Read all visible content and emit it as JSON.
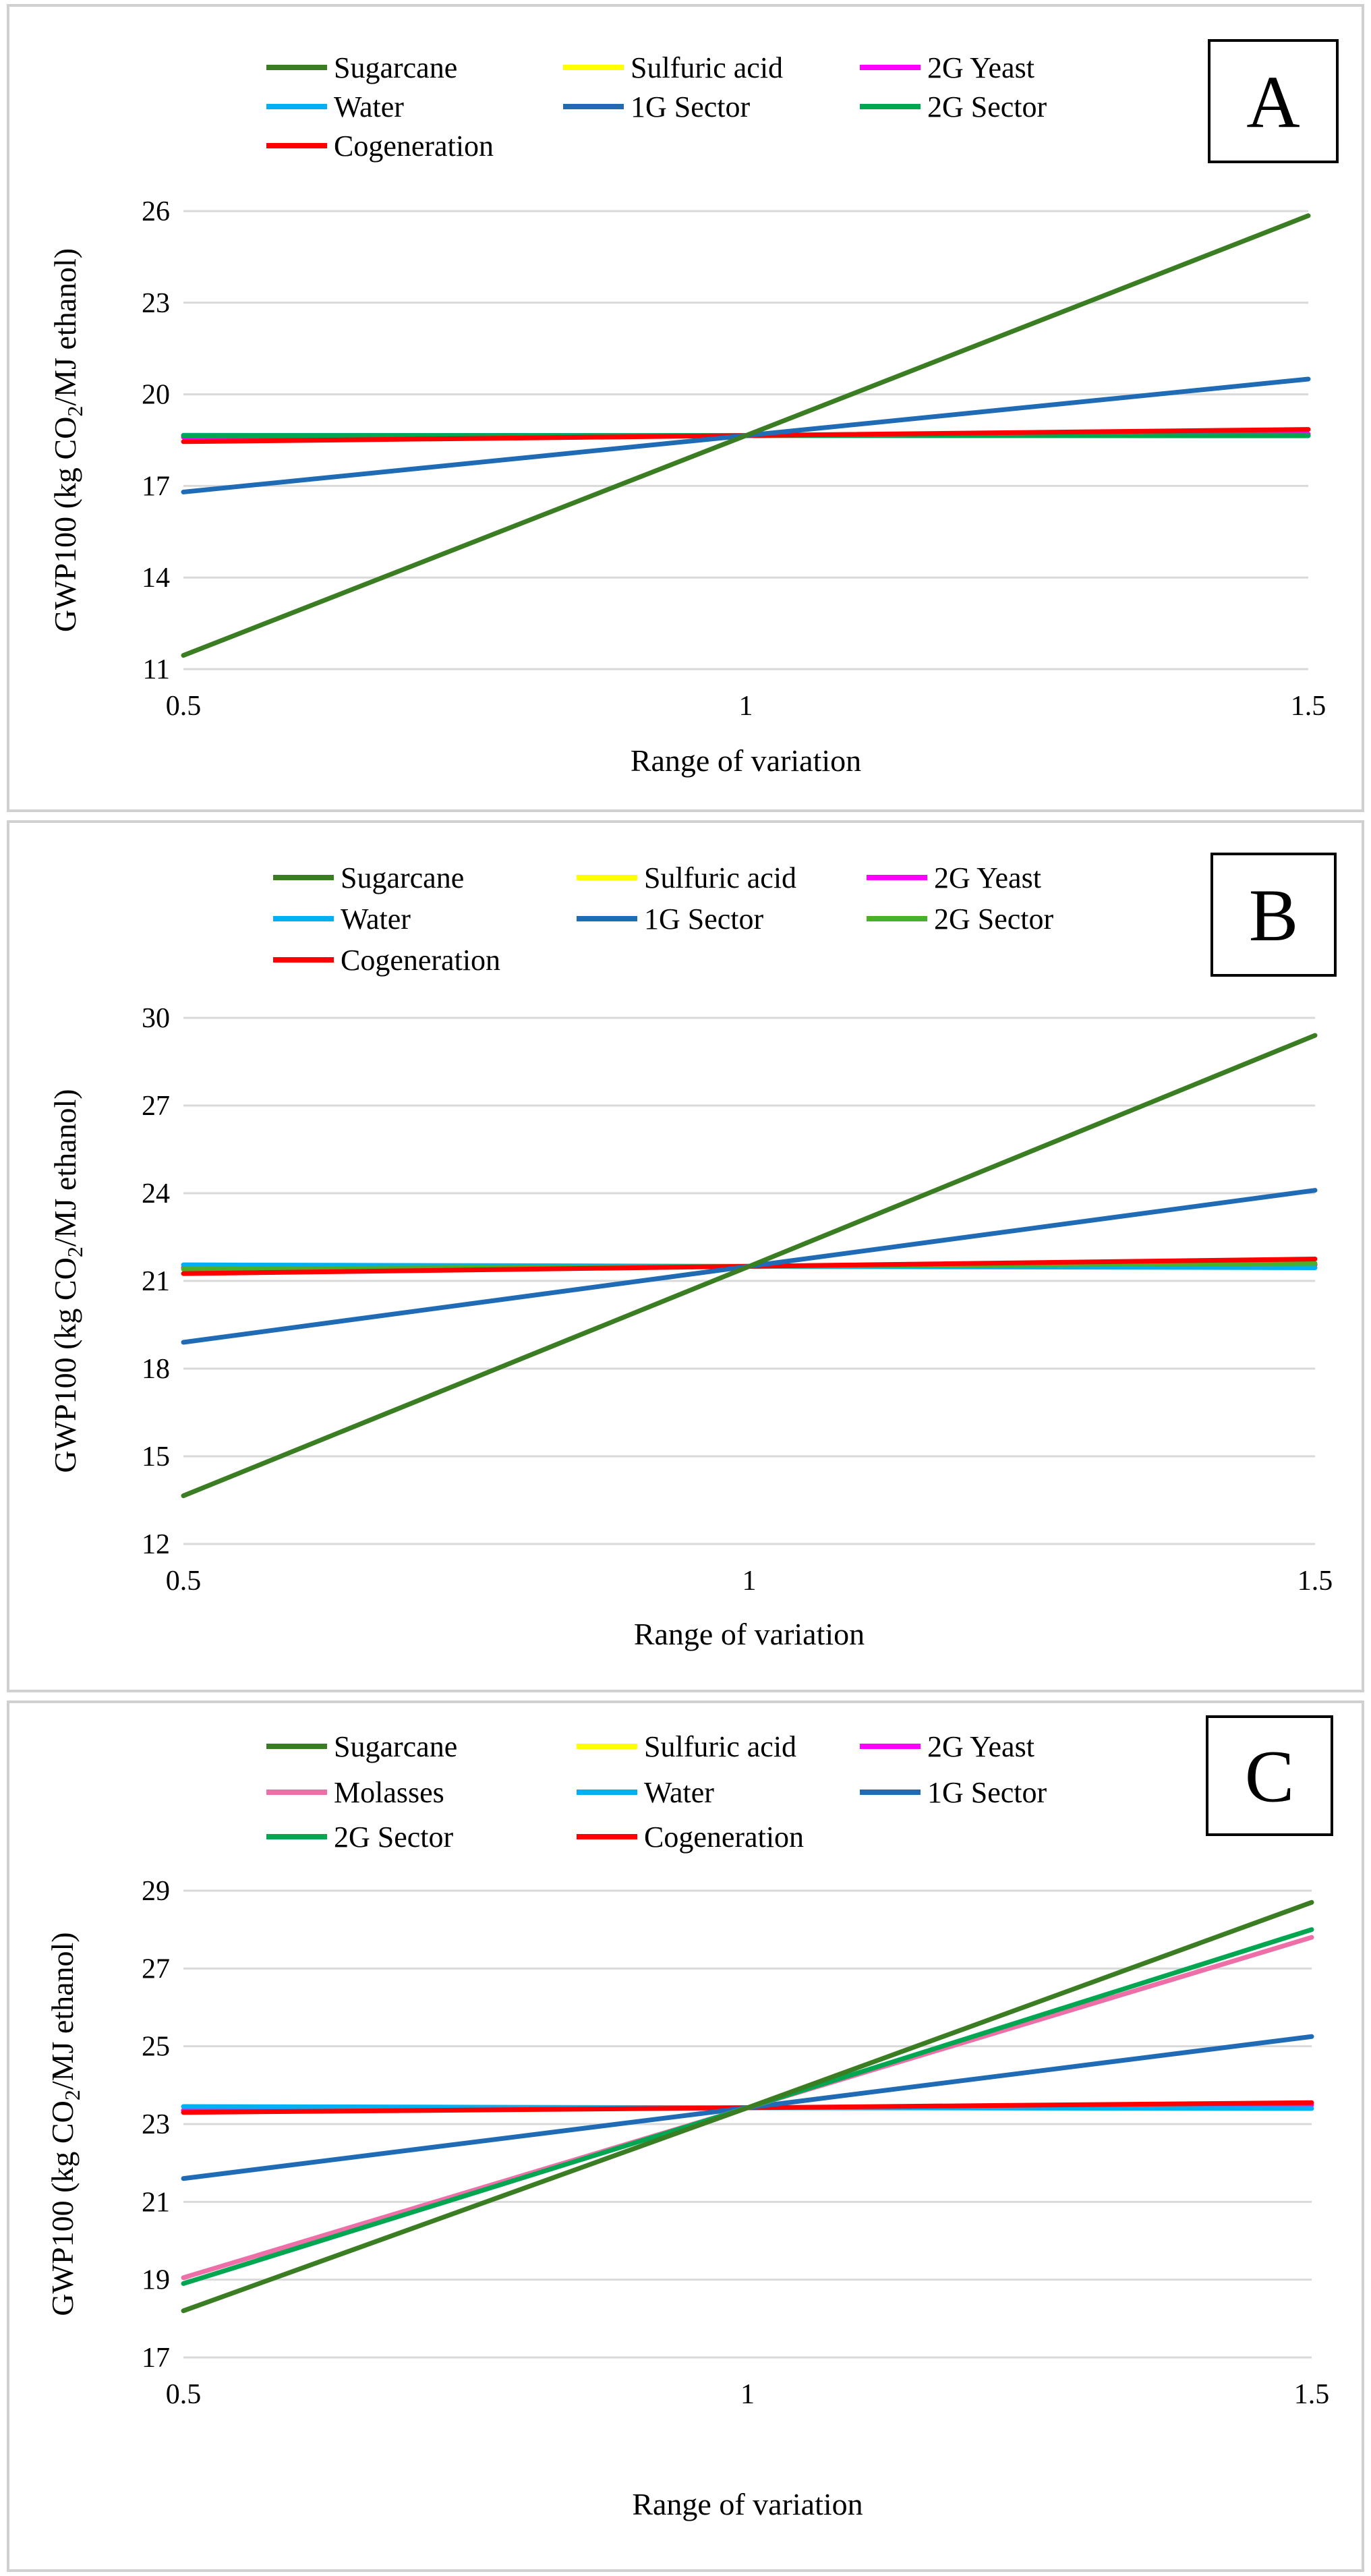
{
  "colors": {
    "Sugarcane": "#3a7d22",
    "Sulfuric acid": "#ffff00",
    "2G Yeast": "#ff00ff",
    "Molasses": "#ee6fa8",
    "Water": "#00b0f0",
    "1G Sector": "#1f6bb5",
    "2G Sector": "#00a650",
    "2G Sector B": "#4caf2a",
    "Cogeneration": "#ff0000"
  },
  "chart_data": [
    {
      "id": "A",
      "type": "line",
      "label": "A",
      "xlabel": "Range of variation",
      "ylabel_main": "GWP100 (kg CO",
      "ylabel_sub": "2",
      "ylabel_rest": "/MJ ethanol)",
      "xlim": [
        0.5,
        1.5
      ],
      "ylim": [
        11,
        26
      ],
      "xticks": [
        "0.5",
        "1",
        "1.5"
      ],
      "yticks": [
        "11",
        "14",
        "17",
        "20",
        "23",
        "26"
      ],
      "legend": [
        "Sugarcane",
        "Sulfuric acid",
        "2G Yeast",
        "Water",
        "1G Sector",
        "2G Sector",
        "Cogeneration"
      ],
      "series": [
        {
          "name": "Sulfuric acid",
          "x": [
            0.5,
            1,
            1.5
          ],
          "values": [
            18.62,
            18.65,
            18.68
          ]
        },
        {
          "name": "2G Yeast",
          "x": [
            0.5,
            1,
            1.5
          ],
          "values": [
            18.6,
            18.65,
            18.7
          ]
        },
        {
          "name": "Water",
          "x": [
            0.5,
            1,
            1.5
          ],
          "values": [
            18.66,
            18.65,
            18.64
          ]
        },
        {
          "name": "2G Sector",
          "x": [
            0.5,
            1,
            1.5
          ],
          "values": [
            18.65,
            18.65,
            18.65
          ]
        },
        {
          "name": "Cogeneration",
          "x": [
            0.5,
            1,
            1.5
          ],
          "values": [
            18.45,
            18.65,
            18.85
          ]
        },
        {
          "name": "1G Sector",
          "x": [
            0.5,
            1,
            1.5
          ],
          "values": [
            16.8,
            18.65,
            20.5
          ]
        },
        {
          "name": "Sugarcane",
          "x": [
            0.5,
            1,
            1.5
          ],
          "values": [
            11.45,
            18.65,
            25.85
          ]
        }
      ]
    },
    {
      "id": "B",
      "type": "line",
      "label": "B",
      "xlabel": "Range of variation",
      "ylabel_main": "GWP100 (kg CO",
      "ylabel_sub": "2",
      "ylabel_rest": "/MJ ethanol)",
      "xlim": [
        0.5,
        1.5
      ],
      "ylim": [
        12,
        30
      ],
      "xticks": [
        "0.5",
        "1",
        "1.5"
      ],
      "yticks": [
        "12",
        "15",
        "18",
        "21",
        "24",
        "27",
        "30"
      ],
      "legend": [
        "Sugarcane",
        "Sulfuric acid",
        "2G Yeast",
        "Water",
        "1G Sector",
        "2G Sector",
        "Cogeneration"
      ],
      "series": [
        {
          "name": "Sulfuric acid",
          "x": [
            0.5,
            1,
            1.5
          ],
          "values": [
            21.47,
            21.5,
            21.53
          ]
        },
        {
          "name": "2G Yeast",
          "x": [
            0.5,
            1,
            1.5
          ],
          "values": [
            21.45,
            21.5,
            21.55
          ]
        },
        {
          "name": "Water",
          "x": [
            0.5,
            1,
            1.5
          ],
          "values": [
            21.55,
            21.5,
            21.45
          ]
        },
        {
          "name": "2G Sector",
          "x": [
            0.5,
            1,
            1.5
          ],
          "values": [
            21.4,
            21.5,
            21.6
          ],
          "colorKey": "2G Sector B"
        },
        {
          "name": "Cogeneration",
          "x": [
            0.5,
            1,
            1.5
          ],
          "values": [
            21.25,
            21.5,
            21.75
          ]
        },
        {
          "name": "1G Sector",
          "x": [
            0.5,
            1,
            1.5
          ],
          "values": [
            18.9,
            21.5,
            24.1
          ]
        },
        {
          "name": "Sugarcane",
          "x": [
            0.5,
            1,
            1.5
          ],
          "values": [
            13.65,
            21.5,
            29.4
          ]
        }
      ]
    },
    {
      "id": "C",
      "type": "line",
      "label": "C",
      "xlabel": "Range of variation",
      "ylabel_main": "GWP100 (kg CO",
      "ylabel_sub": "2",
      "ylabel_rest": "/MJ ethanol)",
      "xlim": [
        0.5,
        1.5
      ],
      "ylim": [
        17,
        29
      ],
      "xticks": [
        "0.5",
        "1",
        "1.5"
      ],
      "yticks": [
        "17",
        "19",
        "21",
        "23",
        "25",
        "27",
        "29"
      ],
      "legend": [
        "Sugarcane",
        "Sulfuric acid",
        "2G Yeast",
        "Molasses",
        "Water",
        "1G Sector",
        "2G Sector",
        "Cogeneration"
      ],
      "series": [
        {
          "name": "Sulfuric acid",
          "x": [
            0.5,
            1,
            1.5
          ],
          "values": [
            23.37,
            23.42,
            23.47
          ]
        },
        {
          "name": "2G Yeast",
          "x": [
            0.5,
            1,
            1.5
          ],
          "values": [
            23.35,
            23.42,
            23.49
          ]
        },
        {
          "name": "Water",
          "x": [
            0.5,
            1,
            1.5
          ],
          "values": [
            23.45,
            23.42,
            23.4
          ]
        },
        {
          "name": "Cogeneration",
          "x": [
            0.5,
            1,
            1.5
          ],
          "values": [
            23.3,
            23.42,
            23.55
          ]
        },
        {
          "name": "1G Sector",
          "x": [
            0.5,
            1,
            1.5
          ],
          "values": [
            21.6,
            23.42,
            25.25
          ]
        },
        {
          "name": "Molasses",
          "x": [
            0.5,
            1,
            1.5
          ],
          "values": [
            19.05,
            23.42,
            27.8
          ]
        },
        {
          "name": "2G Sector",
          "x": [
            0.5,
            1,
            1.5
          ],
          "values": [
            18.9,
            23.42,
            28.0
          ]
        },
        {
          "name": "Sugarcane",
          "x": [
            0.5,
            1,
            1.5
          ],
          "values": [
            18.2,
            23.42,
            28.7
          ]
        }
      ]
    }
  ]
}
